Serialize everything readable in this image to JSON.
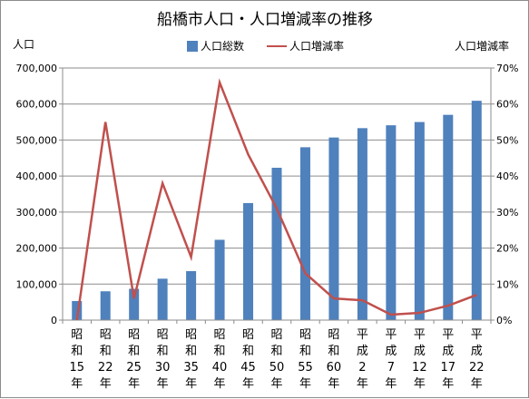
{
  "chart_data": {
    "type": "bar+line",
    "title": "船橋市人口・人口増減率の推移",
    "ylabel_left": "人口",
    "ylabel_right": "人口増減率",
    "ylim_left": [
      0,
      700000
    ],
    "ylim_right": [
      0,
      70
    ],
    "left_ticks": [
      "0",
      "100,000",
      "200,000",
      "300,000",
      "400,000",
      "500,000",
      "600,000",
      "700,000"
    ],
    "right_ticks": [
      "0%",
      "10%",
      "20%",
      "30%",
      "40%",
      "50%",
      "60%",
      "70%"
    ],
    "categories": [
      [
        "昭",
        "和",
        "15",
        "年"
      ],
      [
        "昭",
        "和",
        "22",
        "年"
      ],
      [
        "昭",
        "和",
        "25",
        "年"
      ],
      [
        "昭",
        "和",
        "30",
        "年"
      ],
      [
        "昭",
        "和",
        "35",
        "年"
      ],
      [
        "昭",
        "和",
        "40",
        "年"
      ],
      [
        "昭",
        "和",
        "45",
        "年"
      ],
      [
        "昭",
        "和",
        "50",
        "年"
      ],
      [
        "昭",
        "和",
        "55",
        "年"
      ],
      [
        "昭",
        "和",
        "60",
        "年"
      ],
      [
        "平",
        "成",
        "2",
        "年"
      ],
      [
        "平",
        "成",
        "7",
        "年"
      ],
      [
        "平",
        "成",
        "12",
        "年"
      ],
      [
        "平",
        "成",
        "17",
        "年"
      ],
      [
        "平",
        "成",
        "22",
        "年"
      ]
    ],
    "series": [
      {
        "name": "人口総数",
        "type": "bar",
        "color": "#4f81bd",
        "axis": "left",
        "values": [
          53000,
          80000,
          87000,
          115000,
          136000,
          223000,
          325000,
          423000,
          480000,
          507000,
          533000,
          541000,
          550000,
          570000,
          609000
        ]
      },
      {
        "name": "人口増減率",
        "type": "line",
        "color": "#c0504d",
        "axis": "right",
        "values": [
          0,
          55,
          6,
          38,
          17.5,
          66,
          46,
          31,
          13,
          6,
          5.5,
          1.5,
          2,
          4,
          7
        ]
      }
    ],
    "grid": true,
    "legend": "top"
  }
}
